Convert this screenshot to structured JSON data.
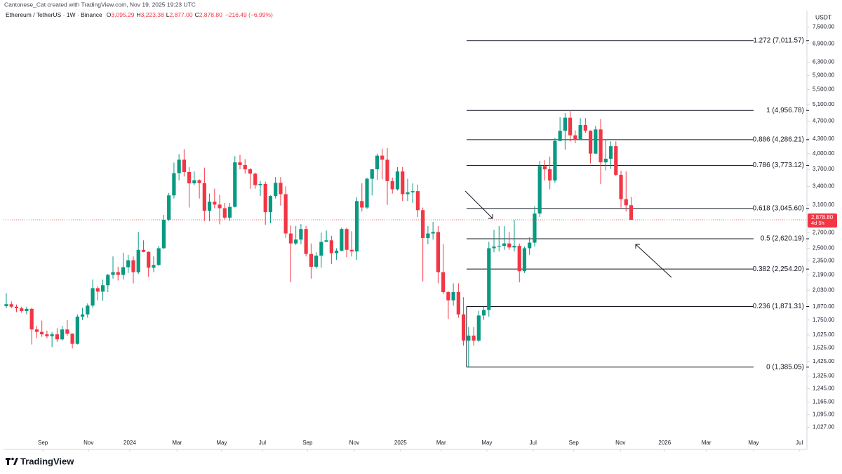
{
  "chart_data": {
    "type": "candlestick",
    "credit": "Cantonese_Cat created with TradingView.com, Nov 19, 2025 19:23 UTC",
    "symbol": "Ethereum / TetherUS · 1W · Binance",
    "ohlc_legend": [
      {
        "key": "O",
        "text": "3,095.29"
      },
      {
        "key": "H",
        "text": "3,223.38"
      },
      {
        "key": "L",
        "text": "2,877.00"
      },
      {
        "key": "C",
        "text": "2,878.80"
      }
    ],
    "change": "−216.49 (−6.99%)",
    "currency": "USDT",
    "last_price_label": "2,878.80",
    "countdown": "4d 5h",
    "brand": "TradingView",
    "log_scale": true,
    "up_color": "#089981",
    "down_color": "#f23645",
    "ylim": [
      980,
      8140
    ],
    "yticks": [
      {
        "value": 7500,
        "label": "7,500.00"
      },
      {
        "value": 6900,
        "label": "6,900.00"
      },
      {
        "value": 6300,
        "label": "6,300.00"
      },
      {
        "value": 5900,
        "label": "5,900.00"
      },
      {
        "value": 5500,
        "label": "5,500.00"
      },
      {
        "value": 5100,
        "label": "5,100.00"
      },
      {
        "value": 4700,
        "label": "4,700.00"
      },
      {
        "value": 4300,
        "label": "4,300.00"
      },
      {
        "value": 4000,
        "label": "4,000.00"
      },
      {
        "value": 3700,
        "label": "3,700.00"
      },
      {
        "value": 3400,
        "label": "3,400.00"
      },
      {
        "value": 3100,
        "label": "3,100.00"
      },
      {
        "value": 2700,
        "label": "2,700.00"
      },
      {
        "value": 2500,
        "label": "2,500.00"
      },
      {
        "value": 2350,
        "label": "2,350.00"
      },
      {
        "value": 2190,
        "label": "2,190.00"
      },
      {
        "value": 2030,
        "label": "2,030.00"
      },
      {
        "value": 1870,
        "label": "1,870.00"
      },
      {
        "value": 1750,
        "label": "1,750.00"
      },
      {
        "value": 1625,
        "label": "1,625.00"
      },
      {
        "value": 1525,
        "label": "1,525.00"
      },
      {
        "value": 1425,
        "label": "1,425.00"
      },
      {
        "value": 1325,
        "label": "1,325.00"
      },
      {
        "value": 1245,
        "label": "1,245.00"
      },
      {
        "value": 1165,
        "label": "1,165.00"
      },
      {
        "value": 1095,
        "label": "1,095.00"
      },
      {
        "value": 1027,
        "label": "1,027.00"
      }
    ],
    "xlim": [
      -0.55,
      157.6
    ],
    "xticks": [
      {
        "value": 7.2,
        "label": "Sep"
      },
      {
        "value": 16.2,
        "label": "Nov"
      },
      {
        "value": 24.3,
        "label": "2024"
      },
      {
        "value": 33.6,
        "label": "Mar"
      },
      {
        "value": 42.4,
        "label": "May"
      },
      {
        "value": 50.4,
        "label": "Jul"
      },
      {
        "value": 59.3,
        "label": "Sep"
      },
      {
        "value": 68.5,
        "label": "Nov"
      },
      {
        "value": 77.6,
        "label": "2025"
      },
      {
        "value": 85.6,
        "label": "Mar"
      },
      {
        "value": 94.6,
        "label": "May"
      },
      {
        "value": 103.7,
        "label": "Jul"
      },
      {
        "value": 111.7,
        "label": "Sep"
      },
      {
        "value": 120.9,
        "label": "Nov"
      },
      {
        "value": 129.6,
        "label": "2026"
      },
      {
        "value": 137.8,
        "label": "Mar"
      },
      {
        "value": 147.1,
        "label": "May"
      },
      {
        "value": 156.1,
        "label": "Jul"
      }
    ],
    "fib_start": 90.6,
    "fib_levels": [
      {
        "value": 7011.57,
        "label": "1.272 (7,011.57)"
      },
      {
        "value": 4956.78,
        "label": "1 (4,956.78)"
      },
      {
        "value": 4286.21,
        "label": "0.886 (4,286.21)"
      },
      {
        "value": 3773.12,
        "label": "0.786 (3,773.12)"
      },
      {
        "value": 3045.6,
        "label": "0.618 (3,045.60)"
      },
      {
        "value": 2620.19,
        "label": "0.5 (2,620.19)"
      },
      {
        "value": 2254.2,
        "label": "0.382 (2,254.20)"
      },
      {
        "value": 1871.31,
        "label": "0.236 (1,871.31)"
      },
      {
        "value": 1385.05,
        "label": "0 (1,385.05)"
      }
    ],
    "candles": [
      [
        1875,
        2000,
        1855,
        1893
      ],
      [
        1893,
        1920,
        1855,
        1870
      ],
      [
        1870,
        1890,
        1820,
        1855
      ],
      [
        1855,
        1870,
        1815,
        1830
      ],
      [
        1830,
        1870,
        1800,
        1850
      ],
      [
        1850,
        1860,
        1550,
        1670
      ],
      [
        1670,
        1700,
        1600,
        1650
      ],
      [
        1650,
        1745,
        1610,
        1630
      ],
      [
        1630,
        1660,
        1600,
        1615
      ],
      [
        1615,
        1650,
        1530,
        1630
      ],
      [
        1630,
        1680,
        1570,
        1590
      ],
      [
        1590,
        1700,
        1580,
        1670
      ],
      [
        1670,
        1750,
        1620,
        1635
      ],
      [
        1635,
        1640,
        1520,
        1555
      ],
      [
        1555,
        1800,
        1550,
        1780
      ],
      [
        1780,
        1860,
        1750,
        1800
      ],
      [
        1800,
        1900,
        1770,
        1880
      ],
      [
        1880,
        2140,
        1860,
        2050
      ],
      [
        2050,
        2070,
        1930,
        2015
      ],
      [
        2015,
        2140,
        1925,
        2080
      ],
      [
        2080,
        2200,
        2010,
        2190
      ],
      [
        2190,
        2400,
        2150,
        2220
      ],
      [
        2220,
        2280,
        2130,
        2190
      ],
      [
        2190,
        2445,
        2140,
        2275
      ],
      [
        2275,
        2420,
        2210,
        2355
      ],
      [
        2355,
        2400,
        2100,
        2220
      ],
      [
        2220,
        2710,
        2200,
        2480
      ],
      [
        2480,
        2600,
        2450,
        2455
      ],
      [
        2455,
        2460,
        2170,
        2270
      ],
      [
        2270,
        2400,
        2220,
        2300
      ],
      [
        2300,
        2530,
        2290,
        2500
      ],
      [
        2500,
        2950,
        2490,
        2880
      ],
      [
        2880,
        3290,
        2860,
        3250
      ],
      [
        3250,
        3825,
        3200,
        3630
      ],
      [
        3630,
        3990,
        3500,
        3880
      ],
      [
        3880,
        4090,
        3570,
        3650
      ],
      [
        3650,
        3740,
        3060,
        3450
      ],
      [
        3450,
        3660,
        3420,
        3505
      ],
      [
        3505,
        3520,
        3200,
        3455
      ],
      [
        3455,
        3730,
        2860,
        3010
      ],
      [
        3010,
        3280,
        2860,
        3150
      ],
      [
        3150,
        3360,
        3050,
        3105
      ],
      [
        3105,
        3260,
        2815,
        3050
      ],
      [
        3050,
        3130,
        2880,
        2910
      ],
      [
        2910,
        3130,
        2865,
        3070
      ],
      [
        3070,
        3950,
        3060,
        3830
      ],
      [
        3830,
        3975,
        3700,
        3780
      ],
      [
        3780,
        3890,
        3620,
        3700
      ],
      [
        3700,
        3720,
        3360,
        3620
      ],
      [
        3620,
        3640,
        3360,
        3420
      ],
      [
        3420,
        3490,
        3240,
        3440
      ],
      [
        3440,
        3480,
        2810,
        2990
      ],
      [
        2990,
        3250,
        2830,
        3240
      ],
      [
        3240,
        3560,
        3200,
        3460
      ],
      [
        3460,
        3560,
        3090,
        3270
      ],
      [
        3270,
        3400,
        2630,
        2690
      ],
      [
        2690,
        2800,
        2110,
        2560
      ],
      [
        2560,
        2790,
        2540,
        2610
      ],
      [
        2610,
        2820,
        2550,
        2750
      ],
      [
        2750,
        2790,
        2400,
        2430
      ],
      [
        2430,
        2560,
        2150,
        2280
      ],
      [
        2280,
        2450,
        2260,
        2410
      ],
      [
        2410,
        2700,
        2270,
        2580
      ],
      [
        2580,
        2730,
        2580,
        2600
      ],
      [
        2600,
        2660,
        2310,
        2440
      ],
      [
        2440,
        2500,
        2360,
        2470
      ],
      [
        2470,
        2770,
        2460,
        2750
      ],
      [
        2750,
        2770,
        2390,
        2480
      ],
      [
        2480,
        2720,
        2400,
        2460
      ],
      [
        2460,
        3220,
        2360,
        3160
      ],
      [
        3160,
        3450,
        3000,
        3060
      ],
      [
        3060,
        3550,
        3040,
        3530
      ],
      [
        3530,
        3700,
        3250,
        3700
      ],
      [
        3700,
        4000,
        3510,
        3960
      ],
      [
        3960,
        4100,
        3520,
        3880
      ],
      [
        3880,
        4110,
        3100,
        3490
      ],
      [
        3490,
        3550,
        3280,
        3350
      ],
      [
        3350,
        3740,
        3330,
        3660
      ],
      [
        3660,
        3740,
        3160,
        3270
      ],
      [
        3270,
        3530,
        3160,
        3300
      ],
      [
        3300,
        3450,
        3130,
        3320
      ],
      [
        3320,
        3430,
        2920,
        3020
      ],
      [
        3020,
        3060,
        2120,
        2630
      ],
      [
        2630,
        2790,
        2550,
        2690
      ],
      [
        2690,
        2850,
        2610,
        2710
      ],
      [
        2710,
        2790,
        2100,
        2220
      ],
      [
        2220,
        2550,
        1990,
        2010
      ],
      [
        2010,
        2020,
        1760,
        1930
      ],
      [
        1930,
        2100,
        1880,
        2010
      ],
      [
        2010,
        2100,
        1770,
        1800
      ],
      [
        1800,
        1960,
        1540,
        1580
      ],
      [
        1580,
        1690,
        1385,
        1620
      ],
      [
        1620,
        1690,
        1540,
        1580
      ],
      [
        1580,
        1830,
        1570,
        1790
      ],
      [
        1790,
        1870,
        1750,
        1840
      ],
      [
        1840,
        2580,
        1780,
        2500
      ],
      [
        2500,
        2740,
        2450,
        2520
      ],
      [
        2520,
        2790,
        2460,
        2530
      ],
      [
        2530,
        2790,
        2480,
        2560
      ],
      [
        2560,
        2710,
        2480,
        2510
      ],
      [
        2510,
        2880,
        2460,
        2530
      ],
      [
        2530,
        2560,
        2110,
        2230
      ],
      [
        2230,
        2520,
        2210,
        2500
      ],
      [
        2500,
        2640,
        2420,
        2570
      ],
      [
        2570,
        3080,
        2520,
        2970
      ],
      [
        2970,
        3860,
        2920,
        3760
      ],
      [
        3760,
        3870,
        3500,
        3700
      ],
      [
        3700,
        3940,
        3350,
        3500
      ],
      [
        3500,
        4330,
        3460,
        4260
      ],
      [
        4260,
        4790,
        4250,
        4480
      ],
      [
        4480,
        4890,
        4080,
        4780
      ],
      [
        4780,
        4956.78,
        4250,
        4380
      ],
      [
        4380,
        4490,
        4210,
        4300
      ],
      [
        4300,
        4770,
        4270,
        4610
      ],
      [
        4610,
        4770,
        4430,
        4480
      ],
      [
        4480,
        4490,
        3810,
        4000
      ],
      [
        4000,
        4590,
        3990,
        4510
      ],
      [
        4510,
        4750,
        3440,
        3830
      ],
      [
        3830,
        4290,
        3680,
        3900
      ],
      [
        3900,
        4250,
        3710,
        4150
      ],
      [
        4150,
        4250,
        3580,
        3600
      ],
      [
        3600,
        3670,
        3060,
        3190
      ],
      [
        3190,
        3660,
        3000,
        3095.29
      ],
      [
        3095.29,
        3223.38,
        2877,
        2878.8
      ]
    ]
  }
}
